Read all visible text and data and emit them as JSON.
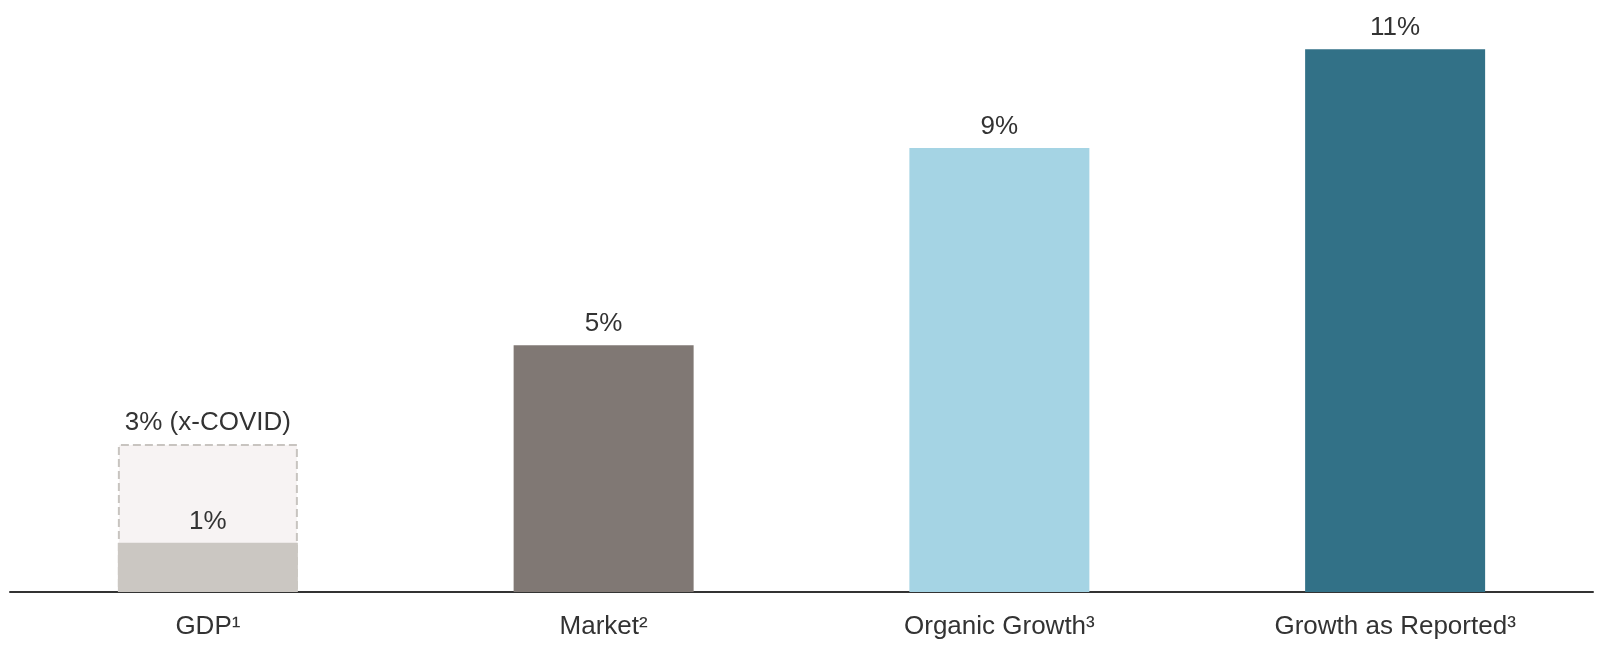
{
  "chart_data": {
    "type": "bar",
    "categories": [
      "GDP¹",
      "Market²",
      "Organic Growth³",
      "Growth as Reported³"
    ],
    "series": [
      {
        "color": "#f7f3f3",
        "line_style": "dashed",
        "values": [
          3,
          null,
          null,
          null
        ],
        "value_labels": [
          "3% (x-COVID)",
          null,
          null,
          null
        ]
      },
      {
        "colors": [
          "#cbc7c2",
          "#807874",
          "#a5d4e4",
          "#327187"
        ],
        "values": [
          1,
          5,
          9,
          11
        ],
        "value_labels": [
          "1%",
          "5%",
          "9%",
          "11%"
        ]
      }
    ],
    "grid": false
  }
}
